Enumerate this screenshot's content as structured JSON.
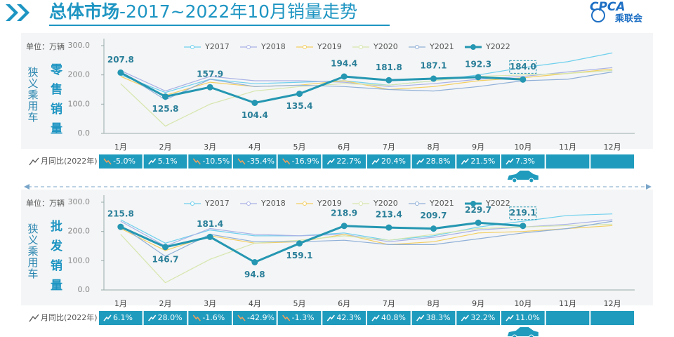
{
  "header": {
    "title_main": "总体市场",
    "title_rest": "-2017~2022年10月销量走势",
    "logo_brand": "CPCA",
    "logo_text": "乘联会"
  },
  "chart_data": [
    {
      "type": "line",
      "unit_label": "单位：万辆",
      "y_label": "狭义乘用车",
      "side_label": "零售销量",
      "categories": [
        "1月",
        "2月",
        "3月",
        "4月",
        "5月",
        "6月",
        "7月",
        "8月",
        "9月",
        "10月",
        "11月",
        "12月"
      ],
      "ylim": [
        0,
        300
      ],
      "yticks": [
        {
          "value": 0,
          "label": "0.0"
        },
        {
          "value": 100,
          "label": "100.0"
        },
        {
          "value": 200,
          "label": "200.0"
        },
        {
          "value": 300,
          "label": "300.0"
        }
      ],
      "series": [
        {
          "name": "Y2017",
          "color": "#6fd0ee",
          "values": [
            200,
            140,
            185,
            170,
            175,
            180,
            165,
            180,
            200,
            225,
            245,
            275
          ]
        },
        {
          "name": "Y2018",
          "color": "#a9b2e6",
          "values": [
            215,
            145,
            195,
            180,
            180,
            175,
            160,
            170,
            185,
            195,
            210,
            225
          ]
        },
        {
          "name": "Y2019",
          "color": "#f3cf62",
          "values": [
            195,
            130,
            175,
            160,
            165,
            180,
            150,
            160,
            180,
            190,
            205,
            220
          ]
        },
        {
          "name": "Y2020",
          "color": "#d6e6ad",
          "values": [
            170,
            25,
            100,
            145,
            160,
            170,
            165,
            180,
            195,
            200,
            205,
            215
          ]
        },
        {
          "name": "Y2021",
          "color": "#90b0d8",
          "values": [
            210,
            115,
            185,
            160,
            165,
            160,
            150,
            145,
            160,
            180,
            185,
            210
          ]
        },
        {
          "name": "Y2022",
          "color": "#2597b2",
          "values": [
            207.8,
            125.8,
            157.9,
            104.4,
            135.4,
            194.4,
            181.8,
            187.1,
            192.3,
            184.0,
            null,
            null
          ],
          "value_labels": [
            "207.8",
            "125.8",
            "157.9",
            "104.4",
            "135.4",
            "194.4",
            "181.8",
            "187.1",
            "192.3",
            "184.0",
            null,
            null
          ]
        }
      ],
      "yoy": {
        "label": "月同比(2022年)",
        "values": [
          -5.0,
          5.1,
          -10.5,
          -35.4,
          -16.9,
          22.7,
          20.4,
          28.8,
          21.5,
          7.3
        ],
        "value_labels": [
          "-5.0%",
          "5.1%",
          "-10.5%",
          "-35.4%",
          "-16.9%",
          "22.7%",
          "20.4%",
          "28.8%",
          "21.5%",
          "7.3%"
        ]
      }
    },
    {
      "type": "line",
      "unit_label": "单位：万辆",
      "y_label": "狭义乘用车",
      "side_label": "批发销量",
      "categories": [
        "1月",
        "2月",
        "3月",
        "4月",
        "5月",
        "6月",
        "7月",
        "8月",
        "9月",
        "10月",
        "11月",
        "12月"
      ],
      "ylim": [
        0,
        300
      ],
      "yticks": [
        {
          "value": 0,
          "label": "0.0"
        },
        {
          "value": 100,
          "label": "100.0"
        },
        {
          "value": 200,
          "label": "200.0"
        },
        {
          "value": 300,
          "label": "300.0"
        }
      ],
      "series": [
        {
          "name": "Y2017",
          "color": "#6fd0ee",
          "values": [
            240,
            160,
            205,
            185,
            185,
            195,
            170,
            185,
            215,
            235,
            255,
            260
          ]
        },
        {
          "name": "Y2018",
          "color": "#a9b2e6",
          "values": [
            235,
            150,
            210,
            190,
            185,
            190,
            165,
            180,
            205,
            215,
            225,
            240
          ]
        },
        {
          "name": "Y2019",
          "color": "#f3cf62",
          "values": [
            210,
            135,
            185,
            160,
            165,
            190,
            155,
            165,
            195,
            200,
            210,
            220
          ]
        },
        {
          "name": "Y2020",
          "color": "#d6e6ad",
          "values": [
            190,
            25,
            105,
            160,
            170,
            185,
            170,
            190,
            210,
            215,
            220,
            225
          ]
        },
        {
          "name": "Y2021",
          "color": "#90b0d8",
          "values": [
            220,
            115,
            190,
            165,
            165,
            170,
            155,
            155,
            175,
            195,
            210,
            235
          ]
        },
        {
          "name": "Y2022",
          "color": "#2597b2",
          "values": [
            215.8,
            146.7,
            181.4,
            94.8,
            159.1,
            218.9,
            213.4,
            209.7,
            229.7,
            219.1,
            null,
            null
          ],
          "value_labels": [
            "215.8",
            "146.7",
            "181.4",
            "94.8",
            "159.1",
            "218.9",
            "213.4",
            "209.7",
            "229.7",
            "219.1",
            null,
            null
          ]
        }
      ],
      "yoy": {
        "label": "月同比(2022年)",
        "values": [
          6.1,
          28.0,
          -1.6,
          -42.9,
          -1.3,
          42.3,
          40.8,
          38.3,
          32.2,
          11.0
        ],
        "value_labels": [
          "6.1%",
          "28.0%",
          "-1.6%",
          "-42.9%",
          "-1.3%",
          "42.3%",
          "40.8%",
          "38.3%",
          "32.2%",
          "11.0%"
        ]
      }
    }
  ]
}
